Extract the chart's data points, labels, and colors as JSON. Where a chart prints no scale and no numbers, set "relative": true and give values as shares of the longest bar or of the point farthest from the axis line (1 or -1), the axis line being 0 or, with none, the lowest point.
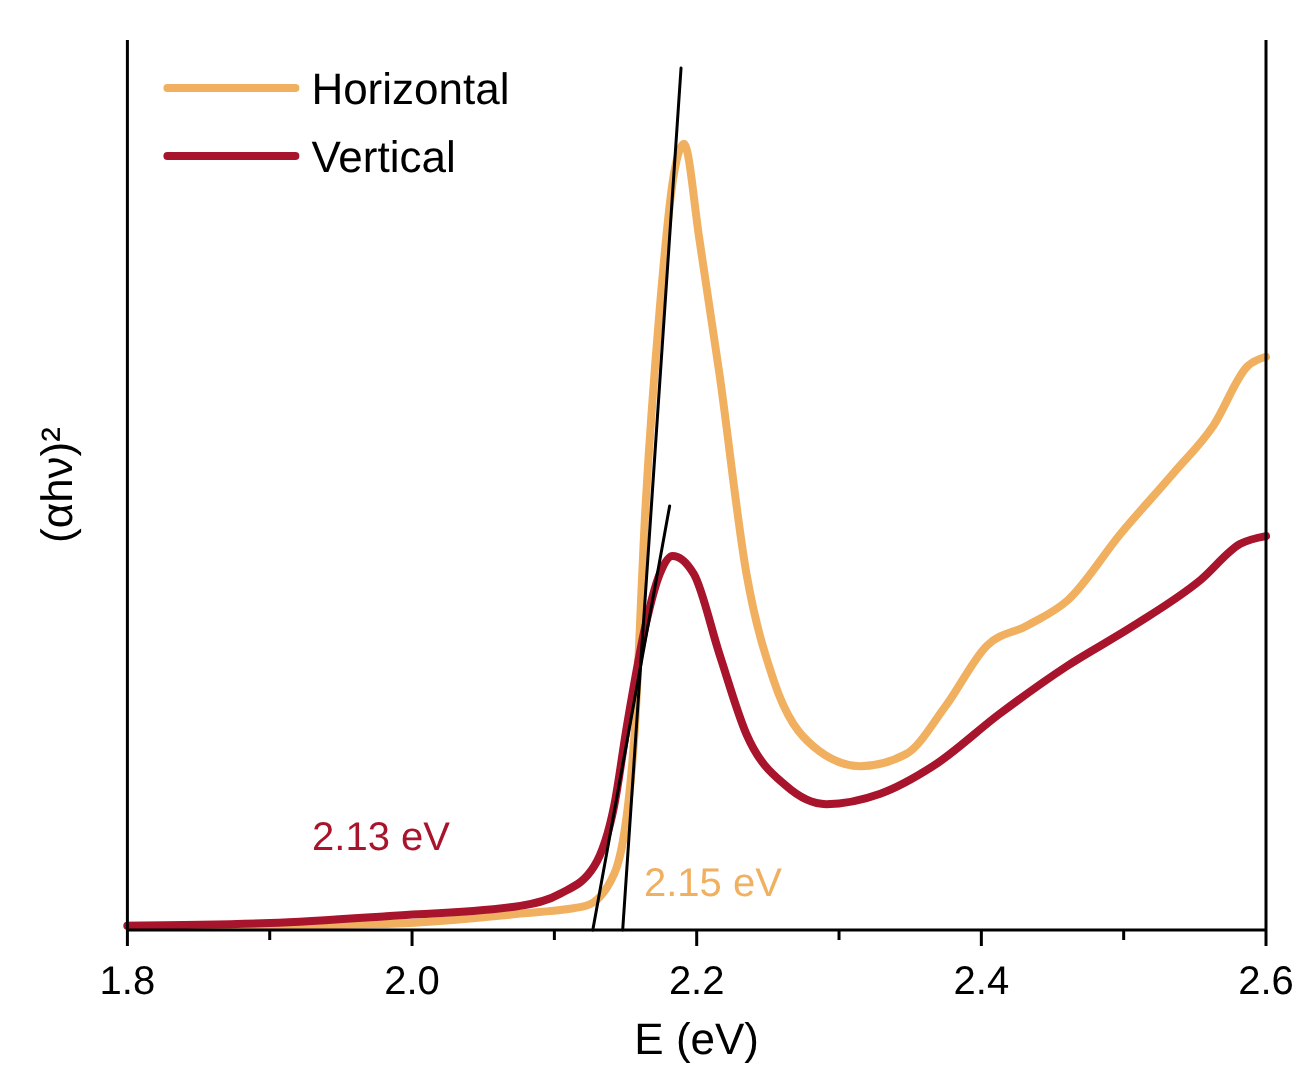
{
  "chart_data": {
    "type": "line",
    "xlabel": "E (eV)",
    "ylabel": "(αhν)²",
    "relative": true,
    "legend": "top left",
    "grid": false,
    "line_style": "solid",
    "xlim": [
      1.8,
      2.6
    ],
    "xticks": [
      1.8,
      {
        "value": 1.9,
        "label": null
      },
      "2.0",
      {
        "value": 2.1,
        "label": null
      },
      2.2,
      {
        "value": 2.3,
        "label": null
      },
      2.4,
      {
        "value": 2.5,
        "label": null
      },
      2.6
    ],
    "series": [
      {
        "name": "Horizontal",
        "color": "#f0b060",
        "x": [
          1.8,
          1.9,
          1.982,
          2.076,
          2.122,
          2.142,
          2.156,
          2.164,
          2.174,
          2.184,
          2.191,
          2.202,
          2.216,
          2.235,
          2.254,
          2.282,
          2.315,
          2.347,
          2.375,
          2.404,
          2.432,
          2.461,
          2.498,
          2.535,
          2.563,
          2.587,
          2.6
        ],
        "values": [
          0.005,
          0.005,
          0.007,
          0.019,
          0.028,
          0.065,
          0.22,
          0.49,
          0.72,
          0.877,
          0.912,
          0.8,
          0.645,
          0.413,
          0.29,
          0.213,
          0.19,
          0.204,
          0.26,
          0.33,
          0.353,
          0.383,
          0.46,
          0.53,
          0.585,
          0.654,
          0.665
        ]
      },
      {
        "name": "Vertical",
        "color": "#a8142c",
        "x": [
          1.8,
          1.9,
          1.982,
          2.076,
          2.104,
          2.128,
          2.142,
          2.151,
          2.164,
          2.174,
          2.183,
          2.198,
          2.216,
          2.235,
          2.263,
          2.291,
          2.329,
          2.366,
          2.413,
          2.46,
          2.507,
          2.554,
          2.582,
          2.6
        ],
        "values": [
          0.005,
          0.008,
          0.016,
          0.028,
          0.042,
          0.074,
          0.144,
          0.237,
          0.353,
          0.413,
          0.434,
          0.413,
          0.32,
          0.227,
          0.167,
          0.146,
          0.158,
          0.19,
          0.251,
          0.306,
          0.353,
          0.406,
          0.448,
          0.457
        ]
      },
      {
        "type": "line",
        "color": "#000000",
        "x": [
          2.148,
          2.189
        ],
        "values": [
          0,
          1
        ]
      },
      {
        "type": "line",
        "color": "#000000",
        "x": [
          2.127,
          2.181
        ],
        "values": [
          0,
          0.492
        ]
      }
    ],
    "annotations": [
      "2.13 eV",
      "2.15 eV"
    ]
  }
}
